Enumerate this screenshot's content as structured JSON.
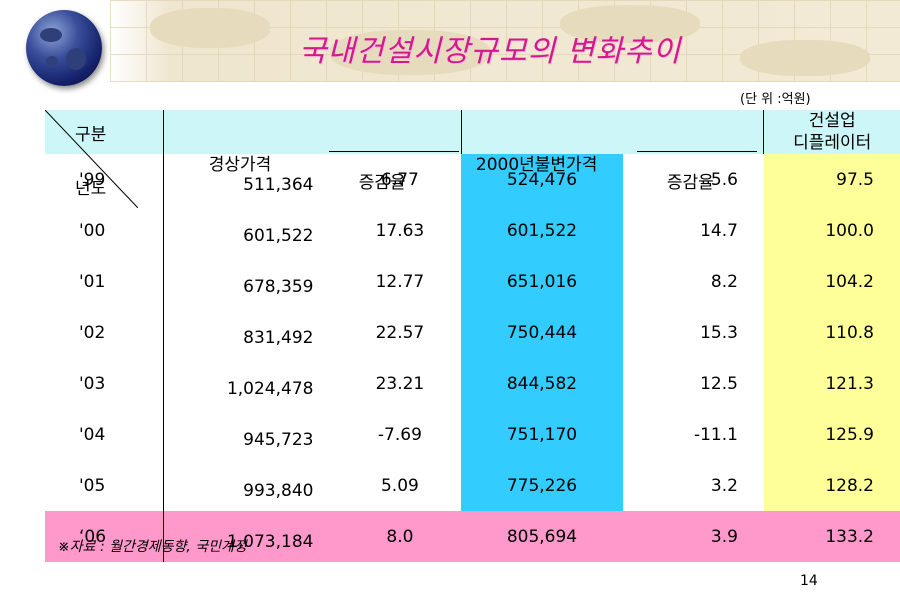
{
  "title": "국내건설시장규모의 변화추이",
  "unit": "(단 위 :억원)",
  "header": {
    "corner_top": "구분",
    "corner_bottom": "년도",
    "current_price": "경상가격",
    "current_growth": "증감율",
    "constant_price": "2000년불변가격",
    "constant_growth": "증감율",
    "deflator_line1": "건설업",
    "deflator_line2": "디플레이터"
  },
  "rows": [
    {
      "year": "'99",
      "current": "511,364",
      "current_growth": "6.77",
      "constant": "524,476",
      "constant_growth": "5.6",
      "deflator": "97.5"
    },
    {
      "year": "'00",
      "current": "601,522",
      "current_growth": "17.63",
      "constant": "601,522",
      "constant_growth": "14.7",
      "deflator": "100.0"
    },
    {
      "year": "'01",
      "current": "678,359",
      "current_growth": "12.77",
      "constant": "651,016",
      "constant_growth": "8.2",
      "deflator": "104.2"
    },
    {
      "year": "'02",
      "current": "831,492",
      "current_growth": "22.57",
      "constant": "750,444",
      "constant_growth": "15.3",
      "deflator": "110.8"
    },
    {
      "year": "'03",
      "current": "1,024,478",
      "current_growth": "23.21",
      "constant": "844,582",
      "constant_growth": "12.5",
      "deflator": "121.3"
    },
    {
      "year": "'04",
      "current": "945,723",
      "current_growth": "-7.69",
      "constant": "751,170",
      "constant_growth": "-11.1",
      "deflator": "125.9"
    },
    {
      "year": "'05",
      "current": "993,840",
      "current_growth": "5.09",
      "constant": "775,226",
      "constant_growth": "3.2",
      "deflator": "128.2"
    },
    {
      "year": "‘06",
      "current": "1,073,184",
      "current_growth": "8.0",
      "constant": "805,694",
      "constant_growth": "3.9",
      "deflator": "133.2"
    }
  ],
  "source": "※자료 : 월간경제동향, 국민계정",
  "page_number": "14",
  "colors": {
    "title": "#d21a8a",
    "header_bg": "#ccf6f7",
    "constant_col_bg": "#33ccff",
    "deflator_col_bg": "#ffff99",
    "highlight_row_bg": "#ff99cc",
    "negative": "#d41c1c"
  },
  "icons": [
    "globe-icon"
  ]
}
